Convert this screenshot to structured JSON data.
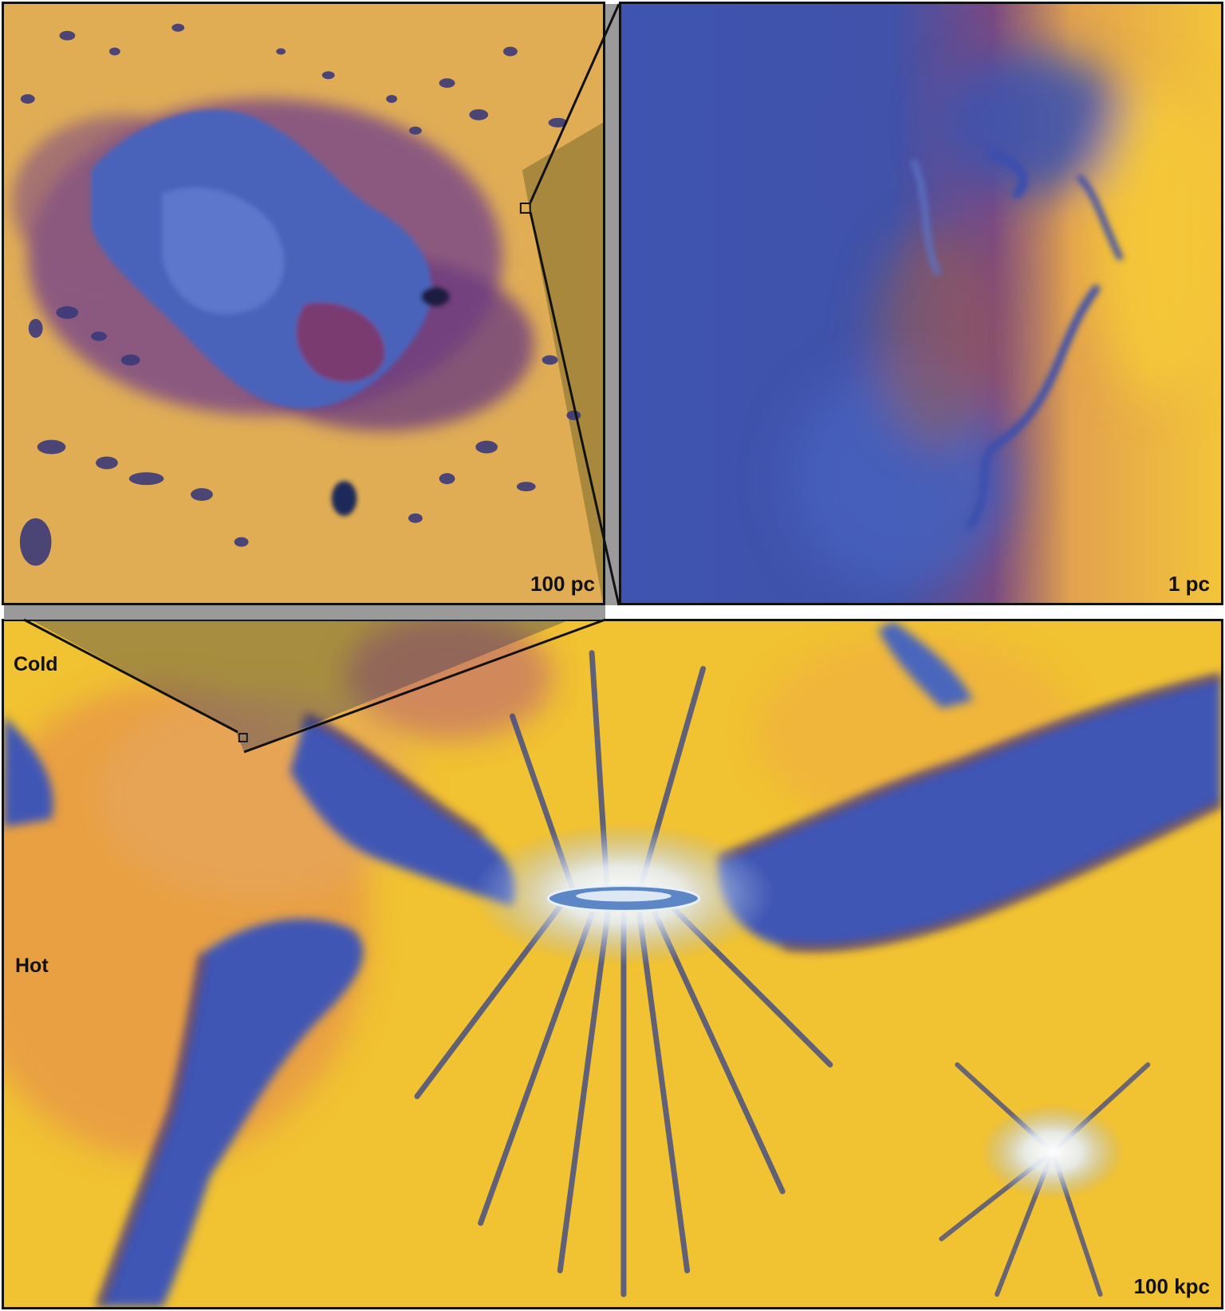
{
  "panels": {
    "top_left": {
      "scale_label": "100 pc"
    },
    "top_right": {
      "scale_label": "1 pc"
    },
    "bottom": {
      "scale_label": "100 kpc"
    }
  },
  "legend": {
    "cold_label": "Cold",
    "hot_label": "Hot"
  },
  "colors": {
    "hot": "#f2c232",
    "warm": "#e59a45",
    "intermediate": "#6a3a7c",
    "cold": "#3e54b0",
    "coldest": "#1f2450",
    "frame": "#111111",
    "connector": "#9a9a9a"
  }
}
